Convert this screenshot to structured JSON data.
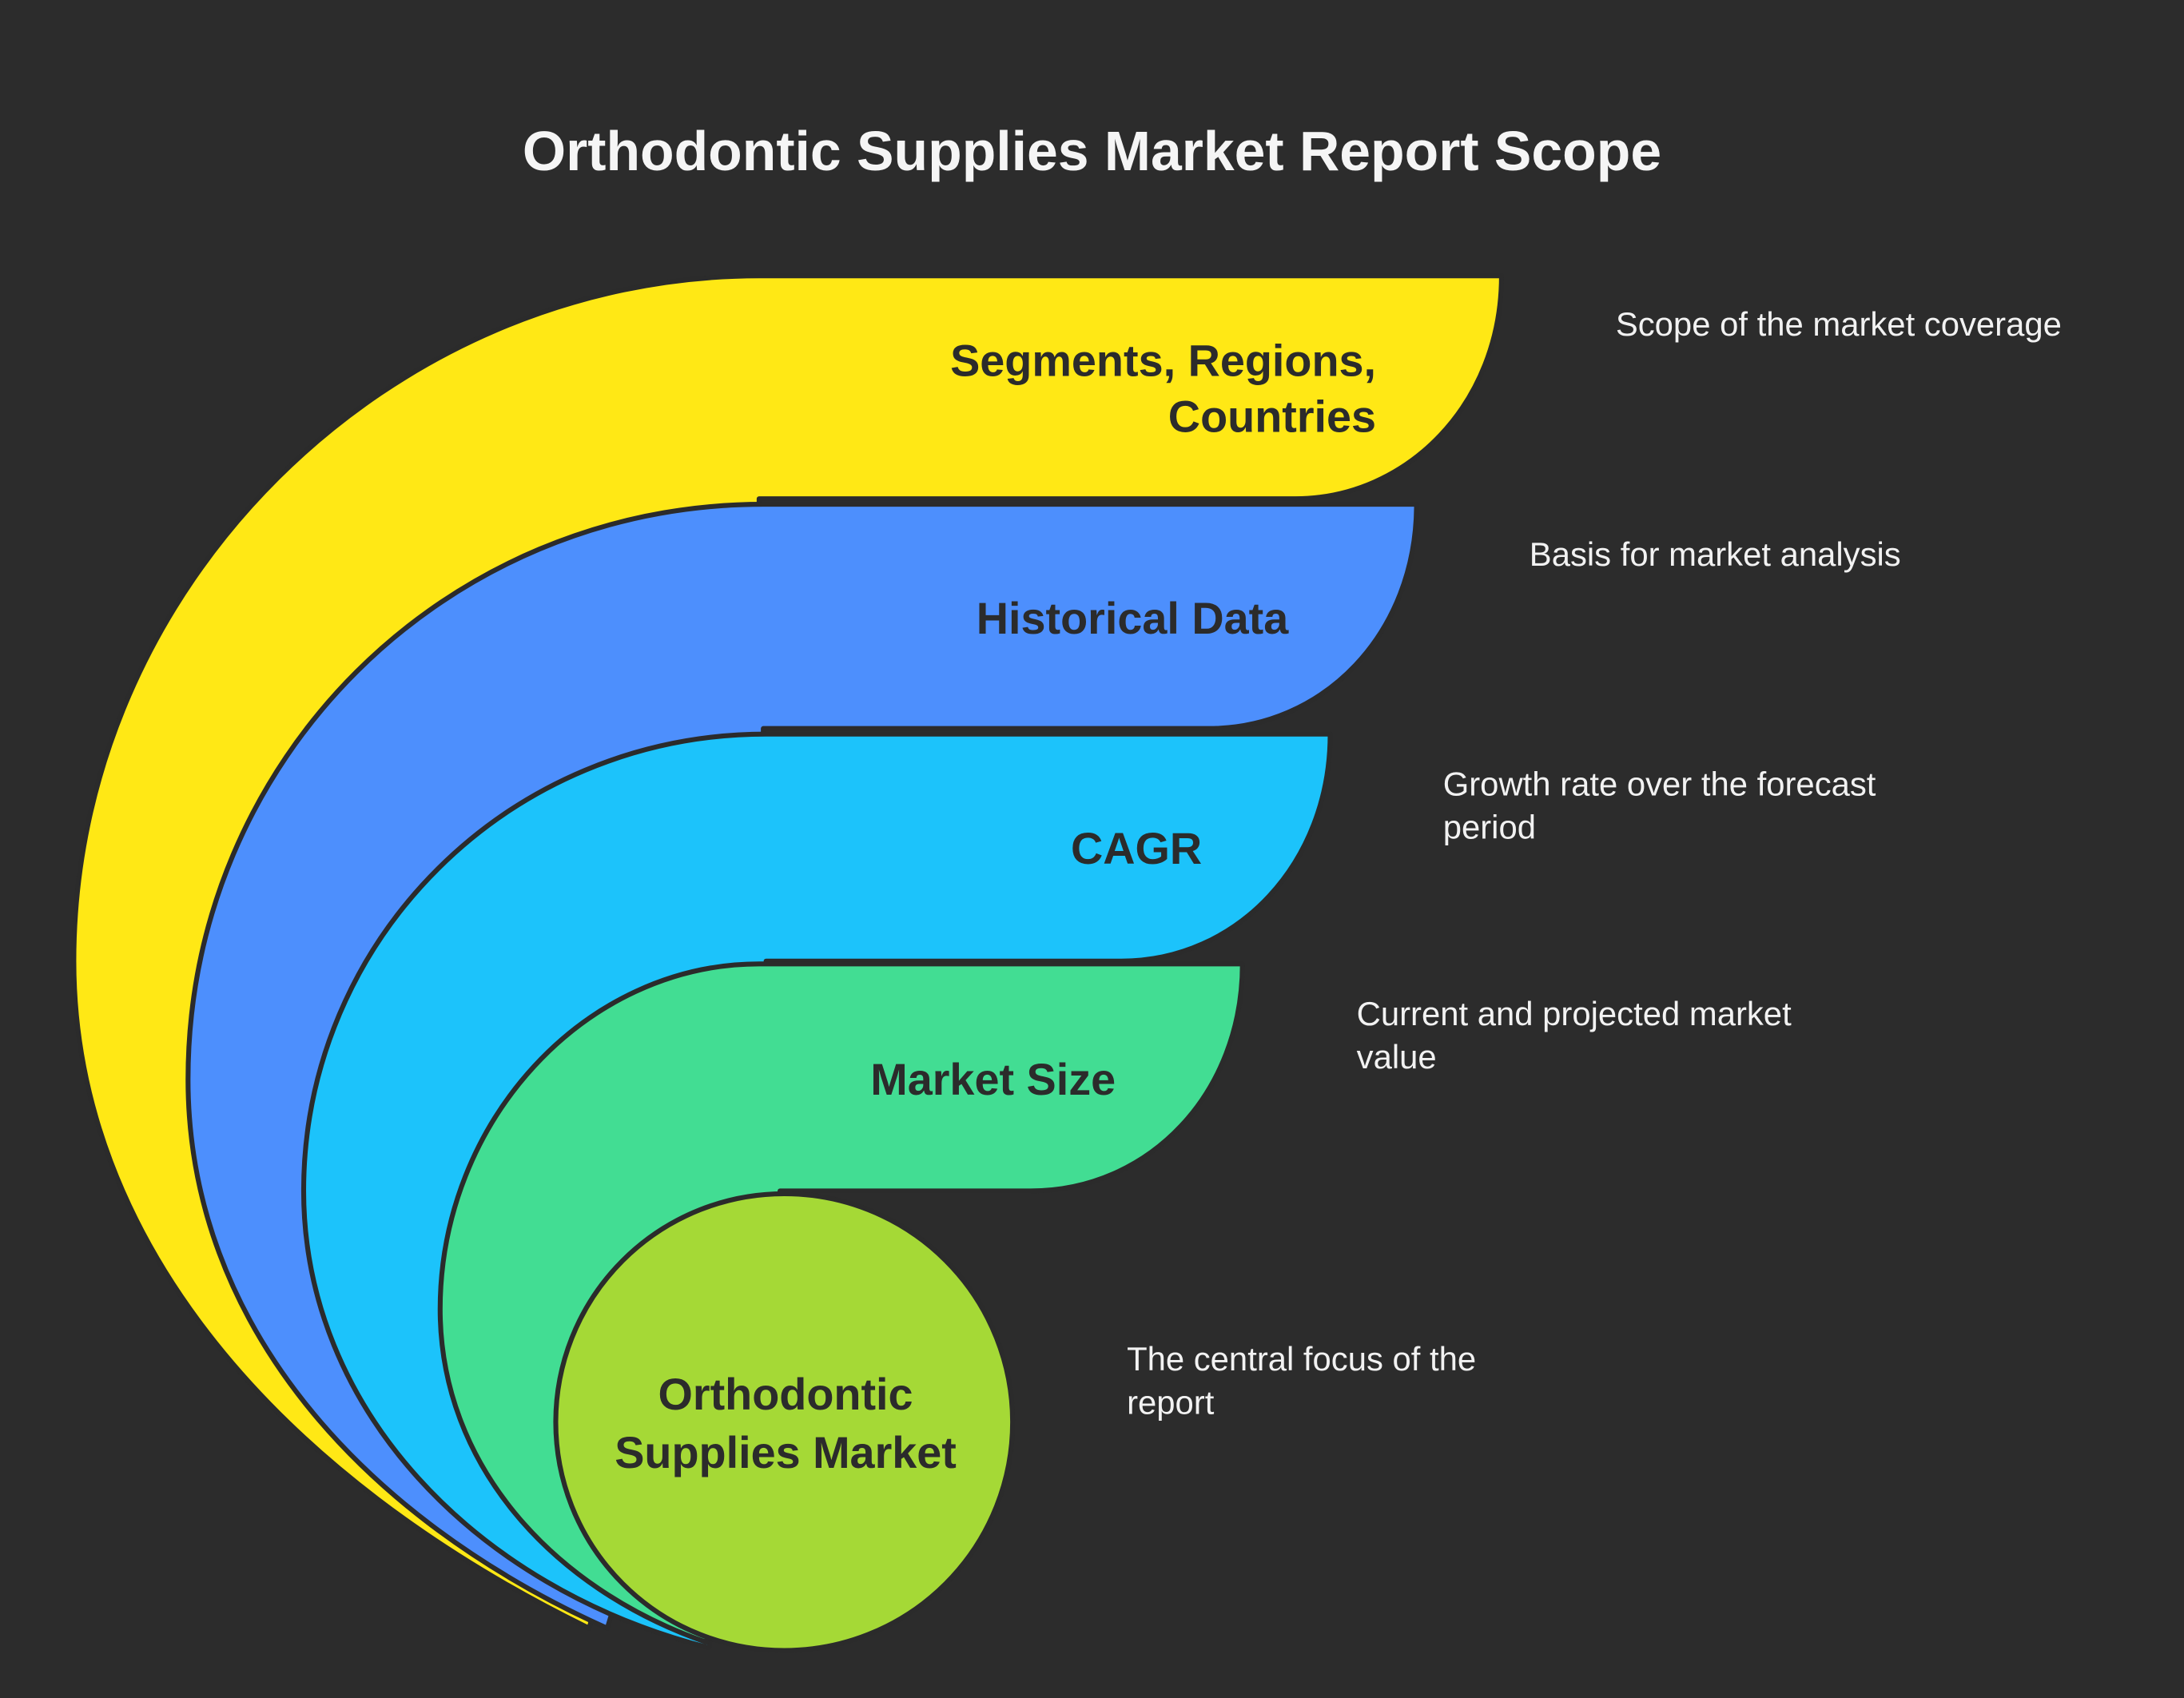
{
  "title": "Orthodontic Supplies Market Report Scope",
  "layers": [
    {
      "label_lines": [
        "Segments, Regions,",
        "Countries"
      ],
      "description_lines": [
        "Scope of the market coverage"
      ],
      "color": "#FFE815"
    },
    {
      "label_lines": [
        "Historical Data"
      ],
      "description_lines": [
        "Basis for market analysis"
      ],
      "color": "#4D8FFD"
    },
    {
      "label_lines": [
        "CAGR"
      ],
      "description_lines": [
        "Growth rate over the forecast",
        "period"
      ],
      "color": "#1CC3FB"
    },
    {
      "label_lines": [
        "Market Size"
      ],
      "description_lines": [
        "Current and projected market",
        "value"
      ],
      "color": "#42DD93"
    },
    {
      "label_lines": [
        "Orthodontic",
        "Supplies Market"
      ],
      "description_lines": [
        "The central focus of the",
        "report"
      ],
      "color": "#A5D936"
    }
  ],
  "background": "#2c2c2c"
}
